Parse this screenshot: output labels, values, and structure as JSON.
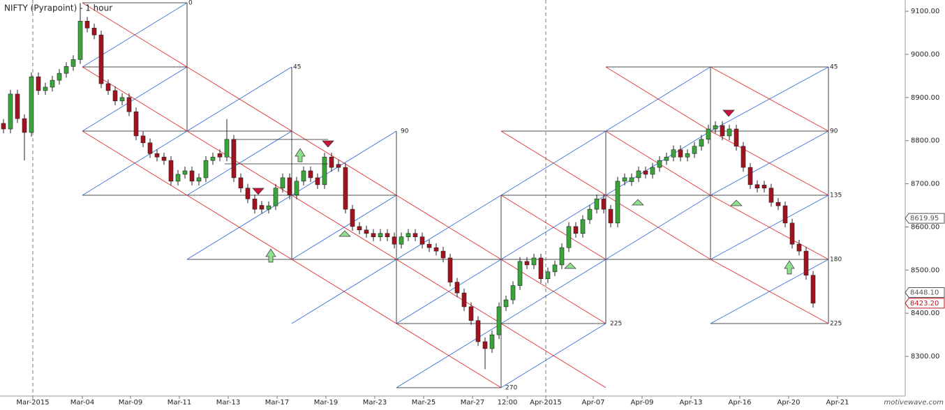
{
  "chart_data": {
    "type": "candlestick",
    "title": "NIFTY (Pyrapoint) - 1 hour",
    "watermark": "motivewave.com",
    "up_color": "#3aa63a",
    "down_color": "#a3131f",
    "open": [
      8840,
      8827,
      8908,
      8851,
      8819,
      8948,
      8916,
      8924,
      8940,
      8956,
      8972,
      8988,
      9077,
      9061,
      9045,
      8932,
      8916,
      8892,
      8900,
      8867,
      8811,
      8795,
      8770,
      8762,
      8754,
      8706,
      8722,
      8730,
      8706,
      8714,
      8754,
      8770,
      8762,
      8803,
      8714,
      8690,
      8665,
      8650,
      8641,
      8649,
      8690,
      8714,
      8674,
      8706,
      8730,
      8714,
      8698,
      8762,
      8745,
      8738,
      8641,
      8601,
      8593,
      8585,
      8577,
      8585,
      8577,
      8560,
      8577,
      8585,
      8577,
      8560,
      8552,
      8544,
      8528,
      8472,
      8447,
      8415,
      8383,
      8334,
      8318,
      8350,
      8415,
      8431,
      8464,
      8520,
      8512,
      8528,
      8480,
      8496,
      8512,
      8552,
      8601,
      8585,
      8617,
      8641,
      8665,
      8641,
      8609,
      8706,
      8705,
      8714,
      8730,
      8722,
      8738,
      8754,
      8762,
      8779,
      8762,
      8770,
      8787,
      8803,
      8827,
      8835,
      8811,
      8827,
      8787,
      8738,
      8698,
      8697,
      8690,
      8657,
      8649,
      8609,
      8560,
      8544,
      8488
    ],
    "high": [
      8850,
      8918,
      8918,
      8861,
      8958,
      8958,
      8934,
      8950,
      8966,
      8982,
      8998,
      9119,
      9087,
      9071,
      9055,
      8942,
      8926,
      8910,
      8910,
      8877,
      8821,
      8805,
      8780,
      8772,
      8764,
      8732,
      8740,
      8740,
      8724,
      8764,
      8772,
      8780,
      8850,
      8813,
      8724,
      8700,
      8675,
      8660,
      8659,
      8700,
      8724,
      8724,
      8716,
      8740,
      8740,
      8724,
      8772,
      8772,
      8755,
      8748,
      8651,
      8611,
      8603,
      8595,
      8595,
      8595,
      8587,
      8587,
      8595,
      8595,
      8587,
      8570,
      8562,
      8554,
      8538,
      8482,
      8457,
      8425,
      8393,
      8344,
      8360,
      8425,
      8441,
      8474,
      8530,
      8530,
      8538,
      8538,
      8506,
      8522,
      8562,
      8611,
      8611,
      8627,
      8651,
      8675,
      8675,
      8651,
      8716,
      8724,
      8724,
      8740,
      8740,
      8748,
      8764,
      8772,
      8789,
      8789,
      8780,
      8797,
      8813,
      8837,
      8845,
      8845,
      8837,
      8837,
      8797,
      8748,
      8708,
      8707,
      8700,
      8667,
      8659,
      8619,
      8570,
      8554,
      8498
    ],
    "low": [
      8817,
      8817,
      8841,
      8754,
      8809,
      8906,
      8906,
      8914,
      8930,
      8946,
      8962,
      8978,
      9051,
      9035,
      8922,
      8906,
      8882,
      8882,
      8857,
      8801,
      8785,
      8760,
      8752,
      8744,
      8696,
      8696,
      8712,
      8696,
      8696,
      8704,
      8744,
      8752,
      8752,
      8704,
      8680,
      8655,
      8631,
      8631,
      8631,
      8639,
      8680,
      8664,
      8664,
      8696,
      8704,
      8688,
      8688,
      8728,
      8728,
      8631,
      8591,
      8583,
      8575,
      8567,
      8567,
      8567,
      8550,
      8550,
      8567,
      8567,
      8550,
      8542,
      8534,
      8518,
      8462,
      8437,
      8405,
      8373,
      8324,
      8270,
      8308,
      8340,
      8405,
      8421,
      8454,
      8502,
      8502,
      8470,
      8470,
      8486,
      8502,
      8542,
      8575,
      8575,
      8607,
      8631,
      8631,
      8599,
      8599,
      8696,
      8695,
      8704,
      8712,
      8712,
      8728,
      8744,
      8752,
      8752,
      8752,
      8760,
      8777,
      8793,
      8817,
      8801,
      8801,
      8777,
      8728,
      8688,
      8680,
      8680,
      8647,
      8639,
      8599,
      8550,
      8534,
      8478,
      8413
    ],
    "close": [
      8827,
      8908,
      8851,
      8819,
      8948,
      8916,
      8924,
      8940,
      8956,
      8972,
      8988,
      9077,
      9061,
      9045,
      8932,
      8916,
      8892,
      8900,
      8867,
      8811,
      8795,
      8770,
      8762,
      8754,
      8706,
      8722,
      8730,
      8706,
      8714,
      8754,
      8762,
      8762,
      8803,
      8714,
      8690,
      8665,
      8641,
      8641,
      8649,
      8690,
      8714,
      8674,
      8706,
      8730,
      8714,
      8698,
      8762,
      8738,
      8738,
      8641,
      8601,
      8593,
      8585,
      8577,
      8585,
      8577,
      8560,
      8577,
      8585,
      8577,
      8560,
      8552,
      8544,
      8528,
      8472,
      8447,
      8415,
      8383,
      8334,
      8318,
      8350,
      8415,
      8431,
      8464,
      8520,
      8512,
      8528,
      8480,
      8496,
      8512,
      8552,
      8601,
      8585,
      8617,
      8641,
      8665,
      8641,
      8609,
      8706,
      8714,
      8714,
      8730,
      8722,
      8738,
      8754,
      8762,
      8779,
      8762,
      8770,
      8787,
      8803,
      8827,
      8835,
      8811,
      8827,
      8787,
      8738,
      8698,
      8690,
      8690,
      8657,
      8649,
      8609,
      8560,
      8544,
      8488,
      8423.2
    ],
    "xlim": [
      0,
      129.5
    ],
    "xticks": [
      {
        "value": 4.7,
        "label": "Mar-2015"
      },
      {
        "value": 11.8,
        "label": "Mar-04"
      },
      {
        "value": 18.7,
        "label": "Mar-09"
      },
      {
        "value": 25.7,
        "label": "Mar-11"
      },
      {
        "value": 32.7,
        "label": "Mar-13"
      },
      {
        "value": 39.7,
        "label": "Mar-17"
      },
      {
        "value": 46.7,
        "label": "Mar-19"
      },
      {
        "value": 53.7,
        "label": "Mar-23"
      },
      {
        "value": 60.7,
        "label": "Mar-25"
      },
      {
        "value": 67.7,
        "label": "Mar-27"
      },
      {
        "value": 72.7,
        "label": "12:00"
      },
      {
        "value": 78.2,
        "label": "Apr-2015"
      },
      {
        "value": 85,
        "label": "Apr-07"
      },
      {
        "value": 92,
        "label": "Apr-09"
      },
      {
        "value": 99,
        "label": "Apr-13"
      },
      {
        "value": 106,
        "label": "Apr-16"
      },
      {
        "value": 113,
        "label": "Apr-20"
      },
      {
        "value": 120,
        "label": "Apr-21"
      }
    ],
    "ylim": [
      8208,
      9126
    ],
    "yticks": [
      {
        "value": 8300,
        "label": "8300.00"
      },
      {
        "value": 8400,
        "label": "8400.00"
      },
      {
        "value": 8500,
        "label": "8500.00"
      },
      {
        "value": 8600,
        "label": "8600.00"
      },
      {
        "value": 8700,
        "label": "8700.00"
      },
      {
        "value": 8800,
        "label": "8800.00"
      },
      {
        "value": 8900,
        "label": "8900.00"
      },
      {
        "value": 9000,
        "label": "9000.00"
      },
      {
        "value": 9100,
        "label": "9100.00"
      }
    ],
    "price_markers": [
      {
        "value": 8619.95,
        "label": "8619.95",
        "color": "#555555"
      },
      {
        "value": 8448.1,
        "label": "8448.10",
        "color": "#555555"
      },
      {
        "value": 8423.2,
        "label": "8423.20",
        "color": "#c0141e"
      }
    ],
    "pyrapoint_labels": [
      "0",
      "45",
      "90",
      "225",
      "270",
      "45",
      "90",
      "135",
      "180",
      "225"
    ]
  }
}
